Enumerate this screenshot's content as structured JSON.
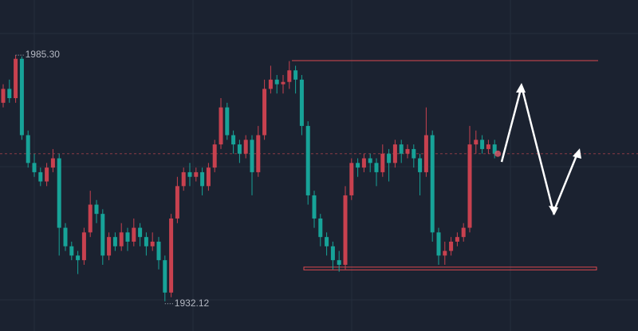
{
  "chart_data": {
    "type": "candlestick",
    "ylim": [
      1925.7,
      1997.2
    ],
    "up_color": "#c8414f",
    "down_color": "#17a398",
    "open": [
      1975,
      1978,
      1976,
      1984.5,
      1968,
      1962,
      1960,
      1958,
      1961,
      1963,
      1948,
      1944,
      1942,
      1941,
      1947,
      1953,
      1951,
      1942,
      1946,
      1944,
      1947,
      1945,
      1948,
      1946,
      1944,
      1945,
      1941,
      1934,
      1950,
      1957,
      1960,
      1959,
      1960,
      1957,
      1961,
      1966,
      1974,
      1968,
      1966,
      1964,
      1967,
      1960,
      1968,
      1978,
      1980,
      1979,
      1979.5,
      1982,
      1980,
      1970,
      1955,
      1950,
      1946,
      1944,
      1941,
      1940,
      1955,
      1962,
      1961,
      1963,
      1962,
      1960,
      1964,
      1962,
      1966,
      1964,
      1965,
      1963,
      1960,
      1968,
      1947,
      1942,
      1943,
      1945,
      1946,
      1948,
      1966,
      1967,
      1965,
      1966
    ],
    "high": [
      1979,
      1980,
      1985.3,
      1985,
      1969,
      1964,
      1961,
      1962,
      1965,
      1964,
      1949,
      1945,
      1943,
      1948,
      1956,
      1954,
      1952,
      1947,
      1947,
      1949,
      1948,
      1950,
      1949,
      1947,
      1947,
      1946,
      1942,
      1951,
      1959,
      1961,
      1962,
      1961,
      1961,
      1962,
      1967,
      1976,
      1975,
      1969,
      1967,
      1968,
      1968,
      1970,
      1980,
      1983,
      1981,
      1981,
      1984,
      1983,
      1981,
      1971,
      1956,
      1951,
      1947,
      1945,
      1943,
      1957,
      1963,
      1963,
      1964,
      1964,
      1963,
      1966,
      1965,
      1967,
      1967,
      1966,
      1966,
      1964,
      1974,
      1969,
      1948,
      1945,
      1946,
      1947,
      1949,
      1970,
      1969,
      1968,
      1967,
      1967
    ],
    "low": [
      1974,
      1975,
      1975,
      1967,
      1961,
      1959,
      1957,
      1957,
      1960,
      1942,
      1943,
      1941,
      1938,
      1940,
      1946,
      1949,
      1940,
      1941,
      1943,
      1943,
      1943,
      1944,
      1944,
      1942,
      1943,
      1939,
      1932.12,
      1933,
      1949,
      1956,
      1957,
      1958,
      1955,
      1956,
      1960,
      1965,
      1967,
      1964,
      1962,
      1963,
      1955,
      1959,
      1967,
      1977,
      1977,
      1977,
      1978,
      1977,
      1968,
      1953,
      1948,
      1944,
      1942,
      1939,
      1938.5,
      1939,
      1954,
      1959,
      1960,
      1960,
      1957,
      1959,
      1958,
      1961,
      1962,
      1963,
      1961,
      1955,
      1959,
      1945,
      1940,
      1940,
      1942,
      1944,
      1945,
      1947,
      1964,
      1964,
      1964,
      1963
    ],
    "close": [
      1978,
      1976,
      1984.5,
      1968,
      1962,
      1960,
      1958,
      1961,
      1963,
      1948,
      1944,
      1942,
      1941,
      1947,
      1953,
      1951,
      1942,
      1946,
      1944,
      1947,
      1945,
      1948,
      1946,
      1944,
      1945,
      1941,
      1934,
      1950,
      1957,
      1960,
      1959,
      1960,
      1957,
      1961,
      1966,
      1974,
      1968,
      1966,
      1964,
      1967,
      1960,
      1968,
      1978,
      1980,
      1979,
      1979.5,
      1982,
      1980,
      1970,
      1955,
      1950,
      1946,
      1944,
      1941,
      1940,
      1955,
      1962,
      1961,
      1963,
      1962,
      1960,
      1964,
      1962,
      1966,
      1964,
      1965,
      1963,
      1960,
      1968,
      1947,
      1942,
      1943,
      1945,
      1946,
      1948,
      1966,
      1967,
      1965,
      1966,
      1964
    ],
    "annotations": [
      {
        "value": 1985.3,
        "label": "1985.30"
      },
      {
        "value": 1932.12,
        "label": "1932.12"
      }
    ],
    "resistance": {
      "value": 1984.1,
      "color": "#d9484f"
    },
    "support": {
      "range": [
        1938.9,
        1939.5
      ],
      "color": "#d9484f"
    },
    "price_line": {
      "value": 1964,
      "color": "#8a3a44"
    }
  }
}
